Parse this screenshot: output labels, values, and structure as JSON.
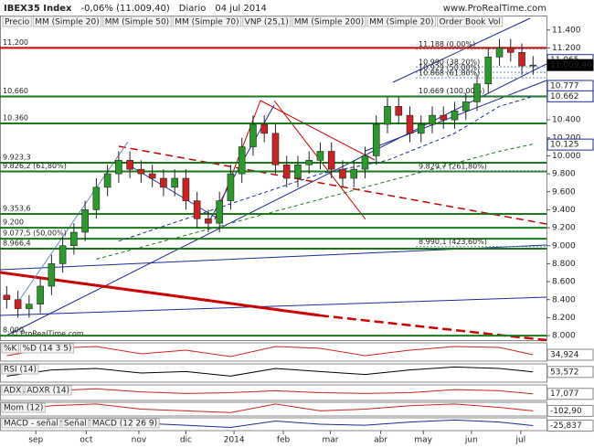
{
  "chart_data": {
    "type": "candlestick",
    "title": "IBEX35 Index",
    "change": "-0,06% (11.009,40)",
    "period": "Diario",
    "date": "04 jul 2014",
    "watermark": "www.ProRealTime.com",
    "copyright": "© ProRealTime.com",
    "legend": [
      {
        "name": "Precio",
        "color": "#000000"
      },
      {
        "name": "MM (Simple 20)",
        "color": "#cc0000"
      },
      {
        "name": "MM (Simple 50)",
        "color": "#888888"
      },
      {
        "name": "MM (Simple 70)",
        "color": "#1a2a9a"
      },
      {
        "name": "VNP (25,1)",
        "color": "#9999dd"
      },
      {
        "name": "MM (Simple 200)",
        "color": "#1a7a1a"
      },
      {
        "name": "MM (Simple 20)",
        "color": "#cc0000"
      },
      {
        "name": "Order Book Vol",
        "color": "#cc4444"
      }
    ],
    "up_color": "#2a9a2a",
    "down_color": "#cc2222",
    "open": [
      8450,
      8400,
      8300,
      8350,
      8550,
      8800,
      9000,
      9150,
      9400,
      9650,
      9800,
      9950,
      9850,
      9800,
      9750,
      9650,
      9750,
      9500,
      9300,
      9250,
      9500,
      9800,
      10100,
      10350,
      10250,
      9900,
      9750,
      9900,
      9950,
      10050,
      9850,
      9750,
      9850,
      10000,
      10350,
      10550,
      10450,
      10250,
      10350,
      10450,
      10400,
      10500,
      10600,
      10800,
      11100,
      11200,
      11150,
      11000
    ],
    "high": [
      8550,
      8500,
      8450,
      8650,
      8900,
      9100,
      9250,
      9500,
      9750,
      9900,
      10050,
      10050,
      9950,
      9900,
      9850,
      9850,
      9850,
      9600,
      9400,
      9600,
      9900,
      10200,
      10450,
      10450,
      10350,
      10000,
      10000,
      10050,
      10150,
      10150,
      9950,
      9950,
      10100,
      10450,
      10650,
      10650,
      10550,
      10450,
      10550,
      10550,
      10600,
      10700,
      10900,
      11200,
      11300,
      11300,
      11250,
      11110
    ],
    "low": [
      8300,
      8200,
      8200,
      8250,
      8450,
      8700,
      8900,
      9050,
      9300,
      9550,
      9700,
      9750,
      9700,
      9650,
      9550,
      9550,
      9400,
      9200,
      9150,
      9150,
      9400,
      9700,
      10000,
      10150,
      9800,
      9650,
      9650,
      9800,
      9850,
      9750,
      9650,
      9650,
      9750,
      9900,
      10250,
      10350,
      10150,
      10150,
      10250,
      10300,
      10300,
      10400,
      10500,
      10700,
      11000,
      11050,
      10900,
      10900
    ],
    "close": [
      8400,
      8300,
      8350,
      8550,
      8800,
      9000,
      9150,
      9400,
      9650,
      9800,
      9950,
      9850,
      9800,
      9750,
      9650,
      9750,
      9500,
      9300,
      9250,
      9500,
      9800,
      10100,
      10350,
      10250,
      9900,
      9750,
      9900,
      9950,
      10050,
      9850,
      9750,
      9850,
      10000,
      10350,
      10550,
      10450,
      10250,
      10350,
      10450,
      10400,
      10500,
      10600,
      10800,
      11100,
      11200,
      11150,
      11000,
      11009.4
    ],
    "xlim": [
      -0.6,
      48.2
    ],
    "xticks": [
      {
        "value": 2.6,
        "label": "sep"
      },
      {
        "value": 7.1,
        "label": "oct"
      },
      {
        "value": 11.8,
        "label": "nov"
      },
      {
        "value": 16,
        "label": "dic"
      },
      {
        "value": 20.3,
        "label": "2014"
      },
      {
        "value": 24.7,
        "label": "feb"
      },
      {
        "value": 28.9,
        "label": "mar"
      },
      {
        "value": 33.4,
        "label": "abr"
      },
      {
        "value": 37.2,
        "label": "may"
      },
      {
        "value": 41.5,
        "label": "jun"
      },
      {
        "value": 45.9,
        "label": "jul"
      }
    ],
    "ylim": [
      7950,
      11550
    ],
    "yticks": [
      {
        "value": 8000,
        "label": "8.000"
      },
      {
        "value": 8200,
        "label": "8.200"
      },
      {
        "value": 8400,
        "label": "8.400"
      },
      {
        "value": 8600,
        "label": "8.600"
      },
      {
        "value": 8800,
        "label": "8.800"
      },
      {
        "value": 9000,
        "label": "9.000"
      },
      {
        "value": 9200,
        "label": "9.200"
      },
      {
        "value": 9400,
        "label": "9.400"
      },
      {
        "value": 9600,
        "label": "9.600"
      },
      {
        "value": 9800,
        "label": "9.800"
      },
      {
        "value": 10000,
        "label": "10.000"
      },
      {
        "value": 10200,
        "label": "10.200"
      },
      {
        "value": 10400,
        "label": "10.400"
      },
      {
        "value": 11200,
        "label": "11.200"
      },
      {
        "value": 11400,
        "label": "11.400"
      }
    ],
    "price_markers": [
      {
        "value": 11065,
        "label": "11.065",
        "color": "#1a2a9a"
      },
      {
        "value": 11009.4,
        "label": "11.009,40",
        "color": "#000000"
      },
      {
        "value": 10777,
        "label": "10.777",
        "color": "#1a2a9a"
      },
      {
        "value": 10662,
        "label": "10.662",
        "color": "#1a2a9a"
      },
      {
        "value": 10125,
        "label": "10.125",
        "color": "#1a2a9a"
      }
    ],
    "levels": [
      {
        "value": 11200,
        "label": "11.200",
        "color": "#cc0000"
      },
      {
        "value": 10660,
        "label": "10.660",
        "color": "#1a7a1a"
      },
      {
        "value": 10360,
        "label": "10.360",
        "color": "#1a7a1a"
      },
      {
        "value": 9923.3,
        "label": "9.923,3",
        "color": "#1a7a1a"
      },
      {
        "value": 9826.2,
        "label": "9.826,2 (61,80%)",
        "color": "#1a7a1a"
      },
      {
        "value": 9353.6,
        "label": "9.353,6",
        "color": "#1a7a1a"
      },
      {
        "value": 9200,
        "label": "9.200",
        "color": "#1a7a1a"
      },
      {
        "value": 9077.5,
        "label": "9.077,5 (50,00%)",
        "color": "#1a7a1a"
      },
      {
        "value": 8966.4,
        "label": "8.966,4",
        "color": "#1a7a1a"
      },
      {
        "value": 8000,
        "label": "8.000",
        "color": "#1a7a1a"
      }
    ],
    "fib_levels": [
      {
        "value": 11188,
        "label": "11.188 (0,00%)"
      },
      {
        "value": 10990,
        "label": "10.990 (38,20%)"
      },
      {
        "value": 10929,
        "label": "10.929 (50,00%)"
      },
      {
        "value": 10868,
        "label": "10.868 (61,80%)"
      },
      {
        "value": 10669,
        "label": "10.669 (100,00%)"
      },
      {
        "value": 9829.7,
        "label": "9.829,7 (261,80%)"
      },
      {
        "value": 8990.1,
        "label": "8.990,1 (423,60%)"
      }
    ],
    "moving_averages": [
      {
        "color": "#1a7a1a",
        "x": [
          8,
          14,
          20,
          26,
          32,
          38,
          44,
          47
        ],
        "values": [
          8850,
          9050,
          9250,
          9450,
          9650,
          9850,
          10050,
          10130
        ]
      },
      {
        "color": "#1a2a9a",
        "x": [
          10,
          16,
          22,
          28,
          34,
          40,
          44,
          47
        ],
        "values": [
          9050,
          9300,
          9550,
          9800,
          9950,
          10250,
          10550,
          10660
        ]
      }
    ],
    "panel_x": [
      0,
      4,
      8,
      12,
      16,
      20,
      24,
      28,
      32,
      36,
      40,
      44,
      47
    ],
    "panels": [
      {
        "labels": [
          "%K",
          "%D (14 3 5)"
        ],
        "color": "#cc2222",
        "ylim": [
          0,
          100
        ],
        "values": [
          30,
          70,
          80,
          40,
          60,
          25,
          80,
          70,
          30,
          60,
          80,
          75,
          34.924
        ],
        "last": {
          "value": 34.924,
          "label": "34,924"
        }
      },
      {
        "labels": [
          "RSI (14)"
        ],
        "color": "#000000",
        "ylim": [
          20,
          80
        ],
        "values": [
          40,
          60,
          65,
          50,
          55,
          40,
          65,
          55,
          45,
          60,
          70,
          65,
          53.572
        ],
        "last": {
          "value": 53.572,
          "label": "53,572"
        }
      },
      {
        "labels": [
          "ADX",
          "ADXR (14)"
        ],
        "color": "#cc2222",
        "ylim": [
          0,
          40
        ],
        "values": [
          20,
          25,
          30,
          22,
          18,
          20,
          25,
          20,
          18,
          20,
          28,
          25,
          17.077
        ],
        "last": {
          "value": 17.077,
          "label": "17,077"
        }
      },
      {
        "labels": [
          "Mom (12)"
        ],
        "color": "#cc2222",
        "ylim": [
          -400,
          400
        ],
        "values": [
          -100,
          200,
          300,
          0,
          -100,
          -200,
          300,
          -100,
          0,
          200,
          300,
          100,
          -102.9
        ],
        "last": {
          "value": -102.9,
          "label": "-102,90"
        }
      },
      {
        "labels": [
          "MACD - señal",
          "Señal",
          "MACD (12 26 9)"
        ],
        "color": "#1a2a9a",
        "ylim": [
          -120,
          120
        ],
        "values": [
          -50,
          50,
          80,
          20,
          -20,
          -60,
          60,
          0,
          -20,
          40,
          80,
          40,
          -25.837
        ],
        "last": {
          "value": -25.837,
          "label": "-25,837"
        }
      }
    ]
  }
}
